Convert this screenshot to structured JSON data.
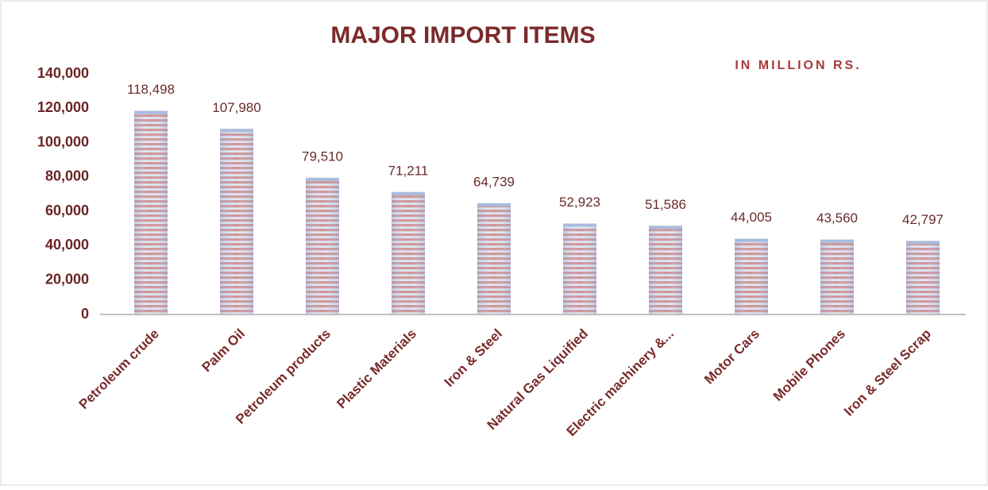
{
  "chart_data": {
    "type": "bar",
    "title": "MAJOR IMPORT ITEMS",
    "subtitle": "IN MILLION RS.",
    "categories": [
      "Petroleum crude",
      "Palm Oil",
      "Petroleum products",
      "Plastic Materials",
      "Iron & Steel",
      "Natural Gas Liquified",
      "Electric machinery &...",
      "Motor Cars",
      "Mobile Phones",
      "Iron & Steel Scrap"
    ],
    "values": [
      118498,
      107980,
      79510,
      71211,
      64739,
      52923,
      51586,
      44005,
      43560,
      42797
    ],
    "value_labels": [
      "118,498",
      "107,980",
      "79,510",
      "71,211",
      "64,739",
      "52,923",
      "51,586",
      "44,005",
      "43,560",
      "42,797"
    ],
    "color": "#c0504d",
    "ylim": [
      0,
      140000
    ],
    "yticks": [
      0,
      {
        "value": 20000,
        "label": "20,000"
      },
      {
        "value": 40000,
        "label": "40,000"
      },
      {
        "value": 60000,
        "label": "60,000"
      },
      {
        "value": 80000,
        "label": "80,000"
      },
      {
        "value": 100000,
        "label": "100,000"
      },
      {
        "value": 120000,
        "label": "120,000"
      },
      {
        "value": 140000,
        "label": "140,000"
      }
    ],
    "grid": false
  }
}
